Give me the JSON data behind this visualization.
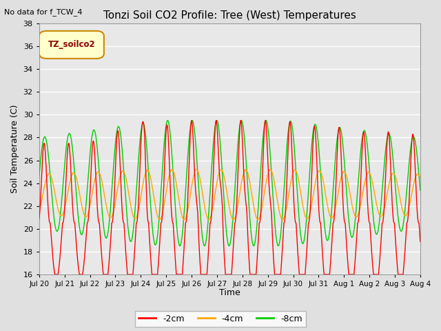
{
  "title": "Tonzi Soil CO2 Profile: Tree (West) Temperatures",
  "no_data_text": "No data for f_TCW_4",
  "legend_box_label": "TZ_soilco2",
  "ylabel": "Soil Temperature (C)",
  "xlabel": "Time",
  "ylim": [
    16,
    38
  ],
  "yticks": [
    16,
    18,
    20,
    22,
    24,
    26,
    28,
    30,
    32,
    34,
    36,
    38
  ],
  "fig_bg_color": "#e0e0e0",
  "plot_bg_color": "#e8e8e8",
  "line_colors": {
    "m2cm": "#ff0000",
    "m4cm": "#ffa500",
    "m8cm": "#00cc00"
  },
  "xtick_labels": [
    "Jul 20",
    "Jul 21",
    "Jul 22",
    "Jul 23",
    "Jul 24",
    "Jul 25",
    "Jul 26",
    "Jul 27",
    "Jul 28",
    "Jul 29",
    "Jul 30",
    "Jul 31",
    "Aug 1",
    "Aug 2",
    "Aug 3",
    "Aug 4"
  ],
  "num_days": 15.5
}
